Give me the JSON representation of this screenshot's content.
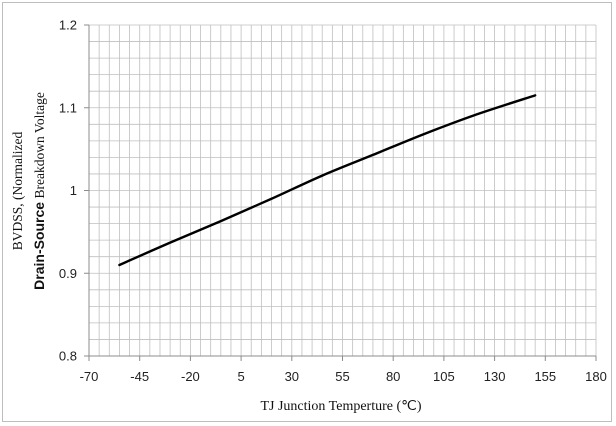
{
  "chart_data": {
    "type": "line",
    "title": "",
    "xlabel": "TJ  Junction Temperture (℃)",
    "ylabel_line1": "BVDSS, (Normalized",
    "ylabel_line2_bold": "Drain-Source",
    "ylabel_line2_rest": " Breakdown Voltage",
    "xlim": [
      -70,
      180
    ],
    "ylim": [
      0.8,
      1.2
    ],
    "x_ticks": [
      -70,
      -45,
      -20,
      5,
      30,
      55,
      80,
      105,
      130,
      155,
      180
    ],
    "x_tick_labels": [
      "-70",
      "-45",
      "-20",
      "5",
      "30",
      "55",
      "80",
      "105",
      "130",
      "155",
      "180"
    ],
    "y_ticks": [
      0.8,
      0.9,
      1.0,
      1.1,
      1.2
    ],
    "y_tick_labels": [
      "0.8",
      "0.9",
      "1",
      "1.1",
      "1.2"
    ],
    "grid": true,
    "series": [
      {
        "color": "#000000",
        "x": [
          -55,
          -30,
          -5,
          20,
          45,
          70,
          95,
          120,
          150
        ],
        "y": [
          0.91,
          0.937,
          0.963,
          0.99,
          1.018,
          1.043,
          1.068,
          1.091,
          1.115
        ]
      }
    ]
  },
  "colors": {
    "grid": "#bfbfbf",
    "axis": "#8c8c8c",
    "line": "#000000"
  }
}
